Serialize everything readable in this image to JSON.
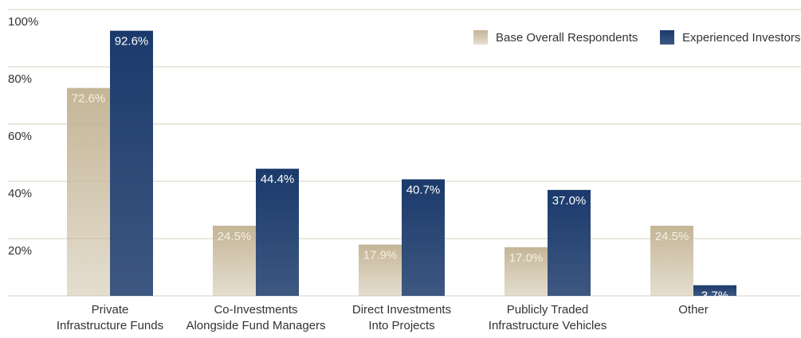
{
  "chart_data": {
    "type": "bar",
    "categories": [
      [
        "Private",
        "Infrastructure Funds"
      ],
      [
        "Co-Investments",
        "Alongside Fund Managers"
      ],
      [
        "Direct Investments",
        "Into Projects"
      ],
      [
        "Publicly Traded",
        "Infrastructure Vehicles"
      ],
      [
        "Other"
      ]
    ],
    "series": [
      {
        "name": "Base Overall Respondents",
        "color": "#c4b596",
        "values": [
          72.6,
          24.5,
          17.9,
          17.0,
          24.5
        ],
        "value_labels": [
          "72.6%",
          "24.5%",
          "17.9%",
          "17.0%",
          "24.5%"
        ]
      },
      {
        "name": "Experienced Investors",
        "color": "#1b3a6b",
        "values": [
          92.6,
          44.4,
          40.7,
          37.0,
          3.7
        ],
        "value_labels": [
          "92.6%",
          "44.4%",
          "40.7%",
          "37.0%",
          "3.7%"
        ]
      }
    ],
    "ylim": [
      0,
      100
    ],
    "yticks": [
      {
        "value": 20,
        "label": "20%"
      },
      {
        "value": 40,
        "label": "40%"
      },
      {
        "value": 60,
        "label": "60%"
      },
      {
        "value": 80,
        "label": "80%"
      },
      {
        "value": 100,
        "label": "100%"
      }
    ],
    "grid": true,
    "legend": "top-right"
  }
}
